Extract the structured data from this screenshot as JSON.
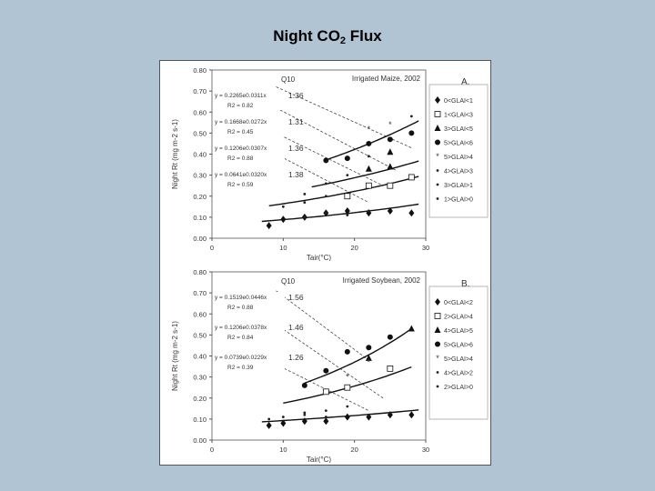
{
  "slide": {
    "title_main": "Night CO",
    "title_sub": "2",
    "title_end": " Flux"
  },
  "chart_data": [
    {
      "type": "scatter",
      "title": "Irrigated Maize, 2002",
      "panel_letter": "A.",
      "q10_header": "Q10",
      "xlabel": "Tair(°C)",
      "ylabel": "Night Rt (mg m-2 s-1)",
      "xlim": [
        0,
        30
      ],
      "ylim": [
        0,
        0.8
      ],
      "xticks": [
        "0",
        "10",
        "20",
        "30"
      ],
      "yticks": [
        "0.00",
        "0.10",
        "0.20",
        "0.30",
        "0.40",
        "0.50",
        "0.60",
        "0.70",
        "0.80"
      ],
      "legend": [
        "0<GLAI<1",
        "1<GLAI<3",
        "3>GLAI<5",
        "5>GLAI<6",
        "5>GLAI>4",
        "4>GLAI>3",
        "3>GLAI>1",
        "1>GLAI>0"
      ],
      "equations": [
        {
          "eq": "y = 0.2265e0.0311x",
          "r2": "R2 = 0.82",
          "q10": "1.36"
        },
        {
          "eq": "y = 0.1668e0.0272x",
          "r2": "R2 = 0.45",
          "q10": "1.31"
        },
        {
          "eq": "y = 0.1206e0.0307x",
          "r2": "R2 = 0.88",
          "q10": "1.36"
        },
        {
          "eq": "y = 0.0641e0.0320x",
          "r2": "R2 = 0.59",
          "q10": "1.38"
        }
      ],
      "series": [
        {
          "marker": "diamond",
          "points": [
            [
              8,
              0.06
            ],
            [
              10,
              0.09
            ],
            [
              13,
              0.1
            ],
            [
              16,
              0.12
            ],
            [
              19,
              0.13
            ],
            [
              22,
              0.12
            ],
            [
              25,
              0.13
            ],
            [
              28,
              0.12
            ]
          ]
        },
        {
          "marker": "square",
          "points": [
            [
              19,
              0.2
            ],
            [
              22,
              0.25
            ],
            [
              25,
              0.25
            ],
            [
              28,
              0.29
            ]
          ]
        },
        {
          "marker": "triangle",
          "points": [
            [
              22,
              0.33
            ],
            [
              25,
              0.34
            ],
            [
              25,
              0.41
            ]
          ]
        },
        {
          "marker": "circle",
          "points": [
            [
              16,
              0.37
            ],
            [
              19,
              0.38
            ],
            [
              22,
              0.45
            ],
            [
              25,
              0.47
            ],
            [
              28,
              0.5
            ]
          ]
        },
        {
          "marker": "star",
          "points": [
            [
              22,
              0.52
            ],
            [
              25,
              0.54
            ]
          ]
        },
        {
          "marker": "dot",
          "points": [
            [
              13,
              0.21
            ],
            [
              16,
              0.26
            ],
            [
              19,
              0.3
            ],
            [
              22,
              0.39
            ],
            [
              28,
              0.58
            ]
          ]
        },
        {
          "marker": "dot",
          "points": [
            [
              10,
              0.15
            ],
            [
              13,
              0.17
            ],
            [
              16,
              0.2
            ]
          ]
        },
        {
          "marker": "dot",
          "points": [
            [
              13,
              0.1
            ],
            [
              16,
              0.12
            ],
            [
              19,
              0.11
            ],
            [
              22,
              0.13
            ]
          ]
        }
      ],
      "fit_curves": [
        {
          "a": 0.0641,
          "b": 0.032,
          "x": [
            7,
            29
          ]
        },
        {
          "a": 0.1206,
          "b": 0.0307,
          "x": [
            8,
            29
          ]
        },
        {
          "a": 0.1668,
          "b": 0.0272,
          "x": [
            14,
            29
          ]
        },
        {
          "a": 0.2265,
          "b": 0.0311,
          "x": [
            16,
            29
          ]
        }
      ],
      "q10_guides": [
        {
          "x": [
            9,
            28
          ],
          "y": [
            0.72,
            0.43
          ]
        },
        {
          "x": [
            9,
            26
          ],
          "y": [
            0.62,
            0.32
          ]
        },
        {
          "x": [
            9,
            24
          ],
          "y": [
            0.5,
            0.25
          ]
        },
        {
          "x": [
            9,
            22
          ],
          "y": [
            0.4,
            0.17
          ]
        }
      ]
    },
    {
      "type": "scatter",
      "title": "Irrigated Soybean, 2002",
      "panel_letter": "B.",
      "q10_header": "Q10",
      "xlabel": "Tair(°C)",
      "ylabel": "Night Rt (mg m-2 s-1)",
      "xlim": [
        0,
        30
      ],
      "ylim": [
        0,
        0.8
      ],
      "xticks": [
        "0",
        "10",
        "20",
        "30"
      ],
      "yticks": [
        "0.00",
        "0.10",
        "0.20",
        "0.30",
        "0.40",
        "0.50",
        "0.60",
        "0.70",
        "0.80"
      ],
      "legend": [
        "0<GLAI<2",
        "2>GLAI>4",
        "4>GLAI>5",
        "5>GLAI>6",
        "5>GLAI>4",
        "4>GLAI>2",
        "2>GLAI>0"
      ],
      "equations": [
        {
          "eq": "y = 0.1519e0.0446x",
          "r2": "R2 = 0.88",
          "q10": "1.56"
        },
        {
          "eq": "y = 0.1206e0.0378x",
          "r2": "R2 = 0.84",
          "q10": "1.46"
        },
        {
          "eq": "y = 0.0739e0.0229x",
          "r2": "R2 = 0.39",
          "q10": "1.26"
        }
      ],
      "series": [
        {
          "marker": "diamond",
          "points": [
            [
              8,
              0.07
            ],
            [
              10,
              0.08
            ],
            [
              13,
              0.09
            ],
            [
              16,
              0.09
            ],
            [
              19,
              0.11
            ],
            [
              22,
              0.11
            ],
            [
              25,
              0.12
            ],
            [
              28,
              0.12
            ]
          ]
        },
        {
          "marker": "square",
          "points": [
            [
              16,
              0.23
            ],
            [
              19,
              0.25
            ],
            [
              25,
              0.34
            ]
          ]
        },
        {
          "marker": "triangle",
          "points": [
            [
              22,
              0.39
            ],
            [
              28,
              0.53
            ]
          ]
        },
        {
          "marker": "circle",
          "points": [
            [
              13,
              0.26
            ],
            [
              16,
              0.33
            ],
            [
              19,
              0.42
            ],
            [
              22,
              0.44
            ],
            [
              25,
              0.49
            ]
          ]
        },
        {
          "marker": "star",
          "points": [
            [
              19,
              0.3
            ],
            [
              22,
              0.37
            ]
          ]
        },
        {
          "marker": "dot",
          "points": [
            [
              10,
              0.11
            ],
            [
              13,
              0.13
            ],
            [
              16,
              0.14
            ],
            [
              19,
              0.16
            ],
            [
              22,
              0.12
            ]
          ]
        },
        {
          "marker": "dot",
          "points": [
            [
              8,
              0.1
            ],
            [
              13,
              0.12
            ],
            [
              16,
              0.11
            ],
            [
              25,
              0.13
            ]
          ]
        }
      ],
      "fit_curves": [
        {
          "a": 0.0739,
          "b": 0.0229,
          "x": [
            7,
            29
          ]
        },
        {
          "a": 0.1206,
          "b": 0.0378,
          "x": [
            10,
            28
          ]
        },
        {
          "a": 0.1519,
          "b": 0.0446,
          "x": [
            13,
            28
          ]
        }
      ],
      "q10_guides": [
        {
          "x": [
            9,
            22
          ],
          "y": [
            0.71,
            0.38
          ]
        },
        {
          "x": [
            9,
            24
          ],
          "y": [
            0.55,
            0.2
          ]
        },
        {
          "x": [
            9,
            22
          ],
          "y": [
            0.36,
            0.14
          ]
        }
      ]
    }
  ]
}
